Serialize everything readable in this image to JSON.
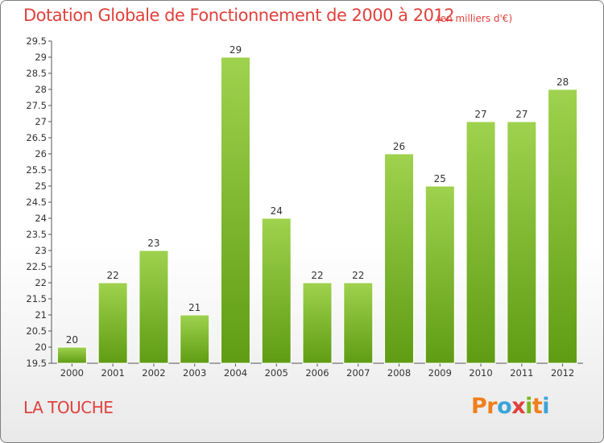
{
  "header": {
    "title": "Dotation Globale de Fonctionnement de 2000 à 2012",
    "subtitle": "(en milliers d'€)"
  },
  "footer": {
    "place": "LA TOUCHE",
    "logo_letters": [
      "P",
      "r",
      "o",
      "x",
      "i",
      "t",
      "i"
    ]
  },
  "colors": {
    "title": "#e0413c",
    "bar_top": "#9fd24e",
    "bar_bottom": "#5f9c14",
    "logo": [
      "#f07f1e",
      "#f07f1e",
      "#3ba4d8",
      "#e0413c",
      "#7ab51d",
      "#f07f1e",
      "#3ba4d8"
    ]
  },
  "chart_data": {
    "type": "bar",
    "title": "Dotation Globale de Fonctionnement de 2000 à 2012",
    "subtitle": "(en milliers d'€)",
    "categories": [
      "2000",
      "2001",
      "2002",
      "2003",
      "2004",
      "2005",
      "2006",
      "2007",
      "2008",
      "2009",
      "2010",
      "2011",
      "2012"
    ],
    "values": [
      20,
      22,
      23,
      21,
      29,
      24,
      22,
      22,
      26,
      25,
      27,
      27,
      28
    ],
    "xlabel": "",
    "ylabel": "",
    "ylim": [
      19.5,
      29.5
    ],
    "yticks": [
      "19.5",
      "20",
      "20.5",
      "21",
      "21.5",
      "22",
      "22.5",
      "23",
      "23.5",
      "24",
      "24.5",
      "25",
      "25.5",
      "26",
      "26.5",
      "27",
      "27.5",
      "28",
      "28.5",
      "29",
      "29.5"
    ],
    "grid": false,
    "legend": "none"
  }
}
